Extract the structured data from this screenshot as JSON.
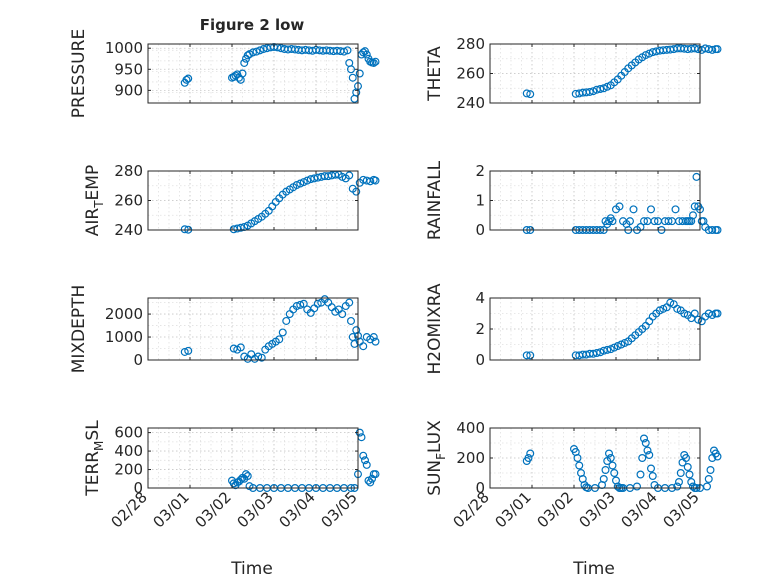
{
  "figure": {
    "title": "Figure 2 low",
    "time_label": "Time",
    "date_ticks": [
      "02/28",
      "03/01",
      "03/02",
      "03/03",
      "03/04",
      "03/05"
    ]
  },
  "colors": {
    "marker": "#0072BD",
    "axis": "#262626",
    "grid": "#c8c8c8"
  },
  "chart_data": [
    {
      "id": "pressure",
      "type": "scatter",
      "title": "Figure 2 low",
      "ylabel": "PRESSURE",
      "ylim": [
        870,
        1010
      ],
      "yticks": [
        900,
        950,
        1000
      ],
      "ytick_labels": [
        "900",
        "950",
        "1000"
      ],
      "xlim": [
        "03/01",
        "03/05"
      ],
      "grid": true,
      "show_xticklabels": false,
      "x": [
        "02/28 21:00",
        "02/28 22:00",
        "02/28 23:00",
        "03/01 00:00",
        "03/01 01:00",
        "03/01 02:00",
        "03/01 03:00",
        "03/01 04:00",
        "03/01 05:00",
        "03/01 06:00",
        "03/01 07:00",
        "03/01 08:00",
        "03/01 09:00",
        "03/01 10:00",
        "03/01 12:00",
        "03/01 14:00",
        "03/01 16:00",
        "03/01 18:00",
        "03/01 20:00",
        "03/01 22:00",
        "03/02 00:00",
        "03/02 02:00",
        "03/02 04:00",
        "03/02 06:00",
        "03/02 08:00",
        "03/02 10:00",
        "03/02 12:00",
        "03/02 14:00",
        "03/02 16:00",
        "03/02 18:00",
        "03/02 20:00",
        "03/02 22:00",
        "03/03 00:00",
        "03/03 02:00",
        "03/03 04:00",
        "03/03 06:00",
        "03/03 08:00",
        "03/03 10:00",
        "03/03 12:00",
        "03/03 14:00",
        "03/03 16:00",
        "03/03 18:00",
        "03/03 19:00",
        "03/03 20:00",
        "03/03 21:00",
        "03/03 22:00",
        "03/03 23:00",
        "03/04 00:00",
        "03/04 01:00",
        "03/04 02:00",
        "03/04 03:00",
        "03/04 04:00",
        "03/04 05:00",
        "03/04 06:00",
        "03/04 07:00",
        "03/04 08:00",
        "03/04 09:00",
        "03/04 10:00"
      ],
      "y": [
        918,
        925,
        928,
        930,
        932,
        935,
        938,
        930,
        925,
        940,
        965,
        975,
        983,
        986,
        990,
        992,
        995,
        998,
        1000,
        1002,
        1003,
        1002,
        1000,
        998,
        997,
        998,
        997,
        996,
        995,
        996,
        995,
        994,
        996,
        995,
        994,
        995,
        994,
        993,
        994,
        993,
        992,
        995,
        965,
        950,
        930,
        880,
        895,
        910,
        940,
        985,
        990,
        993,
        985,
        975,
        968,
        966,
        965,
        968
      ]
    },
    {
      "id": "theta",
      "type": "scatter",
      "ylabel": "THETA",
      "ylim": [
        240,
        280
      ],
      "yticks": [
        240,
        260,
        280
      ],
      "ytick_labels": [
        "240",
        "260",
        "280"
      ],
      "xlim": [
        "03/01",
        "03/05"
      ],
      "grid": true,
      "show_xticklabels": false,
      "x": [
        "02/28 21:00",
        "02/28 23:00",
        "03/01 01:00",
        "03/01 03:00",
        "03/01 05:00",
        "03/01 07:00",
        "03/01 09:00",
        "03/01 11:00",
        "03/01 13:00",
        "03/01 15:00",
        "03/01 17:00",
        "03/01 19:00",
        "03/01 21:00",
        "03/01 23:00",
        "03/02 01:00",
        "03/02 03:00",
        "03/02 05:00",
        "03/02 07:00",
        "03/02 09:00",
        "03/02 11:00",
        "03/02 13:00",
        "03/02 15:00",
        "03/02 17:00",
        "03/02 19:00",
        "03/02 21:00",
        "03/02 23:00",
        "03/03 01:00",
        "03/03 03:00",
        "03/03 05:00",
        "03/03 07:00",
        "03/03 09:00",
        "03/03 11:00",
        "03/03 13:00",
        "03/03 15:00",
        "03/03 17:00",
        "03/03 19:00",
        "03/03 21:00",
        "03/03 23:00",
        "03/04 01:00",
        "03/04 03:00",
        "03/04 05:00",
        "03/04 07:00",
        "03/04 09:00",
        "03/04 10:00"
      ],
      "y": [
        246.5,
        246,
        246.2,
        246.5,
        247,
        247.2,
        247.5,
        248,
        249,
        249.5,
        250,
        251,
        252,
        254,
        256,
        258.5,
        261,
        263.5,
        265.5,
        267.5,
        269.5,
        271,
        272.5,
        273.5,
        274.5,
        275,
        275.5,
        275.8,
        276,
        276.2,
        276.5,
        277,
        277,
        276.8,
        276.5,
        276.8,
        277,
        276.5,
        276,
        277,
        276.5,
        276,
        276.5,
        276.5
      ]
    },
    {
      "id": "air_temp",
      "type": "scatter",
      "ylabel": "AIR_TEMP",
      "ylim": [
        240,
        280
      ],
      "yticks": [
        240,
        260,
        280
      ],
      "ytick_labels": [
        "240",
        "260",
        "280"
      ],
      "xlim": [
        "03/01",
        "03/05"
      ],
      "grid": true,
      "show_xticklabels": false,
      "x": [
        "02/28 21:00",
        "02/28 23:00",
        "03/01 01:00",
        "03/01 03:00",
        "03/01 05:00",
        "03/01 07:00",
        "03/01 09:00",
        "03/01 11:00",
        "03/01 13:00",
        "03/01 15:00",
        "03/01 17:00",
        "03/01 19:00",
        "03/01 21:00",
        "03/01 23:00",
        "03/02 01:00",
        "03/02 03:00",
        "03/02 05:00",
        "03/02 07:00",
        "03/02 09:00",
        "03/02 11:00",
        "03/02 13:00",
        "03/02 15:00",
        "03/02 17:00",
        "03/02 19:00",
        "03/02 21:00",
        "03/02 23:00",
        "03/03 01:00",
        "03/03 03:00",
        "03/03 05:00",
        "03/03 07:00",
        "03/03 09:00",
        "03/03 11:00",
        "03/03 13:00",
        "03/03 15:00",
        "03/03 17:00",
        "03/03 19:00",
        "03/03 21:00",
        "03/03 23:00",
        "03/04 01:00",
        "03/04 03:00",
        "03/04 05:00",
        "03/04 07:00",
        "03/04 09:00",
        "03/04 10:00"
      ],
      "y": [
        240.5,
        240.2,
        240.5,
        241,
        241.5,
        242,
        243,
        244.5,
        246,
        247.5,
        249,
        251,
        253,
        256,
        259,
        261.5,
        264,
        266,
        267.5,
        269,
        270.5,
        271.5,
        272.5,
        273.5,
        274.5,
        275,
        275.5,
        276,
        276.5,
        276.5,
        277,
        277.5,
        277.5,
        276,
        275,
        277,
        268,
        266,
        272,
        274,
        273.5,
        273,
        274,
        273.5
      ]
    },
    {
      "id": "rainfall",
      "type": "scatter",
      "ylabel": "RAINFALL",
      "ylim": [
        0,
        2
      ],
      "yticks": [
        0,
        1,
        2
      ],
      "ytick_labels": [
        "0",
        "1",
        "2"
      ],
      "xlim": [
        "02/28",
        "03/05"
      ],
      "grid": true,
      "show_xticklabels": false,
      "x": [
        "02/28 21:00",
        "02/28 23:00",
        "03/01 01:00",
        "03/01 03:00",
        "03/01 05:00",
        "03/01 07:00",
        "03/01 09:00",
        "03/01 11:00",
        "03/01 13:00",
        "03/01 15:00",
        "03/01 17:00",
        "03/01 18:00",
        "03/01 19:00",
        "03/01 20:00",
        "03/01 21:00",
        "03/01 22:00",
        "03/02 00:00",
        "03/02 02:00",
        "03/02 04:00",
        "03/02 06:00",
        "03/02 07:00",
        "03/02 08:00",
        "03/02 10:00",
        "03/02 12:00",
        "03/02 14:00",
        "03/02 16:00",
        "03/02 18:00",
        "03/02 20:00",
        "03/02 22:00",
        "03/03 00:00",
        "03/03 02:00",
        "03/03 04:00",
        "03/03 06:00",
        "03/03 08:00",
        "03/03 10:00",
        "03/03 12:00",
        "03/03 14:00",
        "03/03 16:00",
        "03/03 17:00",
        "03/03 18:00",
        "03/03 19:00",
        "03/03 20:00",
        "03/03 21:00",
        "03/03 22:00",
        "03/03 23:00",
        "03/04 00:00",
        "03/04 01:00",
        "03/04 02:00",
        "03/04 03:00",
        "03/04 05:00",
        "03/04 07:00",
        "03/04 09:00",
        "03/04 10:00"
      ],
      "y": [
        0,
        0,
        0,
        0,
        0,
        0,
        0,
        0,
        0,
        0,
        0,
        0.3,
        0.2,
        0.3,
        0.4,
        0.3,
        0.7,
        0.8,
        0.3,
        0.2,
        0,
        0.3,
        0.7,
        0,
        0.1,
        0.3,
        0.3,
        0.7,
        0.3,
        0.3,
        0,
        0.3,
        0.3,
        0.3,
        0.7,
        0.3,
        0.3,
        0.3,
        0.3,
        0.3,
        0.3,
        0.5,
        0.8,
        1.8,
        0.8,
        0.7,
        0.3,
        0.3,
        0.1,
        0,
        0,
        0,
        0
      ]
    },
    {
      "id": "mixdepth",
      "type": "scatter",
      "ylabel": "MIXDEPTH",
      "ylim": [
        0,
        2700
      ],
      "yticks": [
        0,
        1000,
        2000
      ],
      "ytick_labels": [
        "0",
        "1000",
        "2000"
      ],
      "xlim": [
        "03/01",
        "03/05"
      ],
      "grid": true,
      "show_xticklabels": false,
      "x": [
        "02/28 21:00",
        "02/28 23:00",
        "03/01 01:00",
        "03/01 03:00",
        "03/01 05:00",
        "03/01 07:00",
        "03/01 09:00",
        "03/01 11:00",
        "03/01 13:00",
        "03/01 15:00",
        "03/01 17:00",
        "03/01 19:00",
        "03/01 21:00",
        "03/01 23:00",
        "03/02 01:00",
        "03/02 03:00",
        "03/02 05:00",
        "03/02 07:00",
        "03/02 09:00",
        "03/02 11:00",
        "03/02 13:00",
        "03/02 15:00",
        "03/02 17:00",
        "03/02 19:00",
        "03/02 21:00",
        "03/02 23:00",
        "03/03 01:00",
        "03/03 03:00",
        "03/03 05:00",
        "03/03 07:00",
        "03/03 09:00",
        "03/03 11:00",
        "03/03 13:00",
        "03/03 15:00",
        "03/03 17:00",
        "03/03 19:00",
        "03/03 20:00",
        "03/03 21:00",
        "03/03 22:00",
        "03/03 23:00",
        "03/04 00:00",
        "03/04 01:00",
        "03/04 03:00",
        "03/04 05:00",
        "03/04 07:00",
        "03/04 09:00",
        "03/04 10:00"
      ],
      "y": [
        350,
        400,
        500,
        450,
        550,
        150,
        50,
        250,
        50,
        150,
        100,
        450,
        600,
        700,
        800,
        900,
        1200,
        1700,
        2000,
        2200,
        2350,
        2400,
        2450,
        2200,
        2050,
        2250,
        2450,
        2500,
        2650,
        2500,
        2300,
        2100,
        2200,
        2000,
        2350,
        2500,
        1700,
        1000,
        700,
        1300,
        1050,
        800,
        600,
        1000,
        900,
        1000,
        800
      ]
    },
    {
      "id": "h2omixra",
      "type": "scatter",
      "ylabel": "H2OMIXRA",
      "ylim": [
        0,
        4
      ],
      "yticks": [
        0,
        2,
        4
      ],
      "ytick_labels": [
        "0",
        "2",
        "4"
      ],
      "xlim": [
        "03/01",
        "03/05"
      ],
      "grid": true,
      "show_xticklabels": false,
      "x": [
        "02/28 21:00",
        "02/28 23:00",
        "03/01 01:00",
        "03/01 03:00",
        "03/01 05:00",
        "03/01 07:00",
        "03/01 09:00",
        "03/01 11:00",
        "03/01 13:00",
        "03/01 15:00",
        "03/01 17:00",
        "03/01 19:00",
        "03/01 21:00",
        "03/01 23:00",
        "03/02 01:00",
        "03/02 03:00",
        "03/02 05:00",
        "03/02 07:00",
        "03/02 09:00",
        "03/02 11:00",
        "03/02 13:00",
        "03/02 15:00",
        "03/02 17:00",
        "03/02 19:00",
        "03/02 21:00",
        "03/02 23:00",
        "03/03 01:00",
        "03/03 03:00",
        "03/03 05:00",
        "03/03 07:00",
        "03/03 09:00",
        "03/03 11:00",
        "03/03 13:00",
        "03/03 15:00",
        "03/03 17:00",
        "03/03 19:00",
        "03/03 21:00",
        "03/03 23:00",
        "03/04 01:00",
        "03/04 03:00",
        "03/04 05:00",
        "03/04 07:00",
        "03/04 09:00",
        "03/04 10:00"
      ],
      "y": [
        0.3,
        0.3,
        0.3,
        0.3,
        0.35,
        0.35,
        0.4,
        0.4,
        0.45,
        0.5,
        0.6,
        0.65,
        0.7,
        0.8,
        0.9,
        1.0,
        1.1,
        1.2,
        1.4,
        1.6,
        1.8,
        2.0,
        2.2,
        2.5,
        2.8,
        3.0,
        3.2,
        3.3,
        3.4,
        3.7,
        3.6,
        3.3,
        3.2,
        3.0,
        2.9,
        2.7,
        3.0,
        2.6,
        2.5,
        2.8,
        3.0,
        2.9,
        3.0,
        3.0
      ]
    },
    {
      "id": "terr_msl",
      "type": "scatter",
      "ylabel": "TERR_MSL",
      "ylim": [
        0,
        650
      ],
      "yticks": [
        0,
        200,
        400,
        600
      ],
      "ytick_labels": [
        "0",
        "200",
        "400",
        "600"
      ],
      "xlim": [
        "02/28",
        "03/05"
      ],
      "grid": true,
      "show_xticklabels": true,
      "x": [
        "03/01 00:00",
        "03/01 01:00",
        "03/01 02:00",
        "03/01 03:00",
        "03/01 04:00",
        "03/01 05:00",
        "03/01 06:00",
        "03/01 07:00",
        "03/01 08:00",
        "03/01 09:00",
        "03/01 10:00",
        "03/01 12:00",
        "03/01 16:00",
        "03/01 20:00",
        "03/02 00:00",
        "03/02 04:00",
        "03/02 08:00",
        "03/02 12:00",
        "03/02 16:00",
        "03/02 20:00",
        "03/03 00:00",
        "03/03 04:00",
        "03/03 08:00",
        "03/03 12:00",
        "03/03 16:00",
        "03/03 20:00",
        "03/03 22:00",
        "03/04 00:00",
        "03/04 01:00",
        "03/04 02:00",
        "03/04 03:00",
        "03/04 04:00",
        "03/04 05:00",
        "03/04 06:00",
        "03/04 07:00",
        "03/04 08:00",
        "03/04 09:00",
        "03/04 10:00"
      ],
      "y": [
        80,
        50,
        30,
        60,
        70,
        90,
        110,
        100,
        150,
        130,
        20,
        0,
        0,
        0,
        0,
        0,
        0,
        0,
        0,
        0,
        0,
        0,
        0,
        0,
        0,
        0,
        0,
        150,
        600,
        550,
        350,
        300,
        250,
        80,
        60,
        100,
        150,
        150
      ]
    },
    {
      "id": "sun_flux",
      "type": "scatter",
      "ylabel": "SUN_FLUX",
      "ylim": [
        0,
        400
      ],
      "yticks": [
        0,
        200,
        400
      ],
      "ytick_labels": [
        "0",
        "200",
        "400"
      ],
      "xlim": [
        "02/28",
        "03/05"
      ],
      "grid": true,
      "show_xticklabels": true,
      "x": [
        "02/28 21:00",
        "02/28 22:00",
        "02/28 23:00",
        "03/01 00:00",
        "03/01 01:00",
        "03/01 02:00",
        "03/01 03:00",
        "03/01 04:00",
        "03/01 05:00",
        "03/01 06:00",
        "03/01 07:00",
        "03/01 08:00",
        "03/01 12:00",
        "03/01 16:00",
        "03/01 17:00",
        "03/01 18:00",
        "03/01 19:00",
        "03/01 20:00",
        "03/01 21:00",
        "03/01 22:00",
        "03/01 23:00",
        "03/02 00:00",
        "03/02 01:00",
        "03/02 02:00",
        "03/02 03:00",
        "03/02 04:00",
        "03/02 08:00",
        "03/02 12:00",
        "03/02 14:00",
        "03/02 15:00",
        "03/02 16:00",
        "03/02 17:00",
        "03/02 18:00",
        "03/02 19:00",
        "03/02 20:00",
        "03/02 21:00",
        "03/02 22:00",
        "03/03 00:00",
        "03/03 04:00",
        "03/03 08:00",
        "03/03 11:00",
        "03/03 12:00",
        "03/03 13:00",
        "03/03 14:00",
        "03/03 15:00",
        "03/03 16:00",
        "03/03 17:00",
        "03/03 18:00",
        "03/03 19:00",
        "03/03 20:00",
        "03/03 21:00",
        "03/03 22:00",
        "03/04 00:00",
        "03/04 04:00",
        "03/04 05:00",
        "03/04 06:00",
        "03/04 07:00",
        "03/04 08:00",
        "03/04 09:00",
        "03/04 10:00"
      ],
      "y": [
        180,
        200,
        230,
        260,
        240,
        200,
        150,
        100,
        60,
        20,
        5,
        0,
        0,
        20,
        60,
        120,
        180,
        230,
        200,
        150,
        100,
        50,
        10,
        0,
        0,
        0,
        0,
        10,
        90,
        200,
        330,
        300,
        250,
        220,
        130,
        80,
        20,
        0,
        0,
        0,
        10,
        40,
        100,
        170,
        220,
        200,
        140,
        90,
        40,
        10,
        0,
        0,
        0,
        10,
        60,
        120,
        200,
        250,
        230,
        210
      ]
    }
  ]
}
